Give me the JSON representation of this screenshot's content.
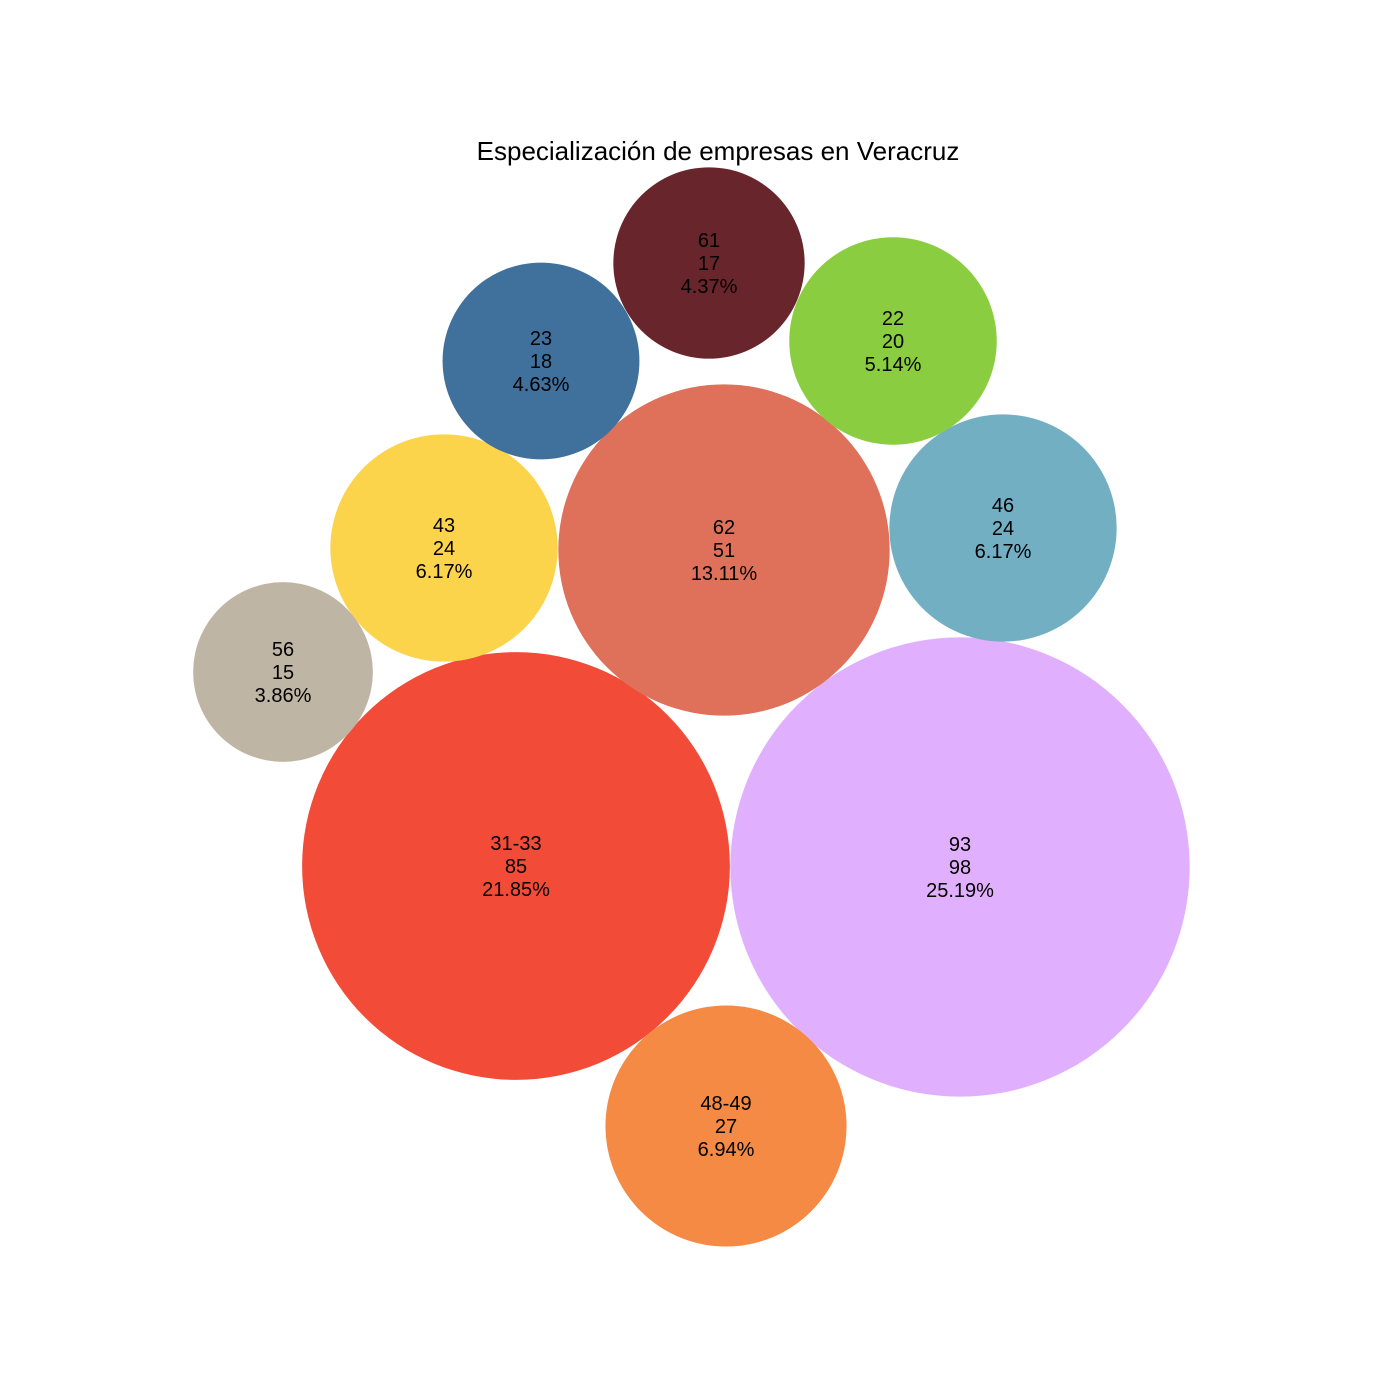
{
  "chart_data": {
    "type": "bubble",
    "title": "Especialización de empresas en Veracruz",
    "bubbles": [
      {
        "label": "31-33",
        "value": 85,
        "percent": "21.85%",
        "color": "#F24C38"
      },
      {
        "label": "93",
        "value": 98,
        "percent": "25.19%",
        "color": "#E0AFFE"
      },
      {
        "label": "62",
        "value": 51,
        "percent": "13.11%",
        "color": "#DF715B"
      },
      {
        "label": "48-49",
        "value": 27,
        "percent": "6.94%",
        "color": "#F48A43"
      },
      {
        "label": "43",
        "value": 24,
        "percent": "6.17%",
        "color": "#FCD44C"
      },
      {
        "label": "46",
        "value": 24,
        "percent": "6.17%",
        "color": "#73AFC3"
      },
      {
        "label": "22",
        "value": 20,
        "percent": "5.14%",
        "color": "#8BCD40"
      },
      {
        "label": "23",
        "value": 18,
        "percent": "4.63%",
        "color": "#40709C"
      },
      {
        "label": "61",
        "value": 17,
        "percent": "4.37%",
        "color": "#68252B"
      },
      {
        "label": "56",
        "value": 15,
        "percent": "3.86%",
        "color": "#BFB5A5"
      }
    ]
  }
}
